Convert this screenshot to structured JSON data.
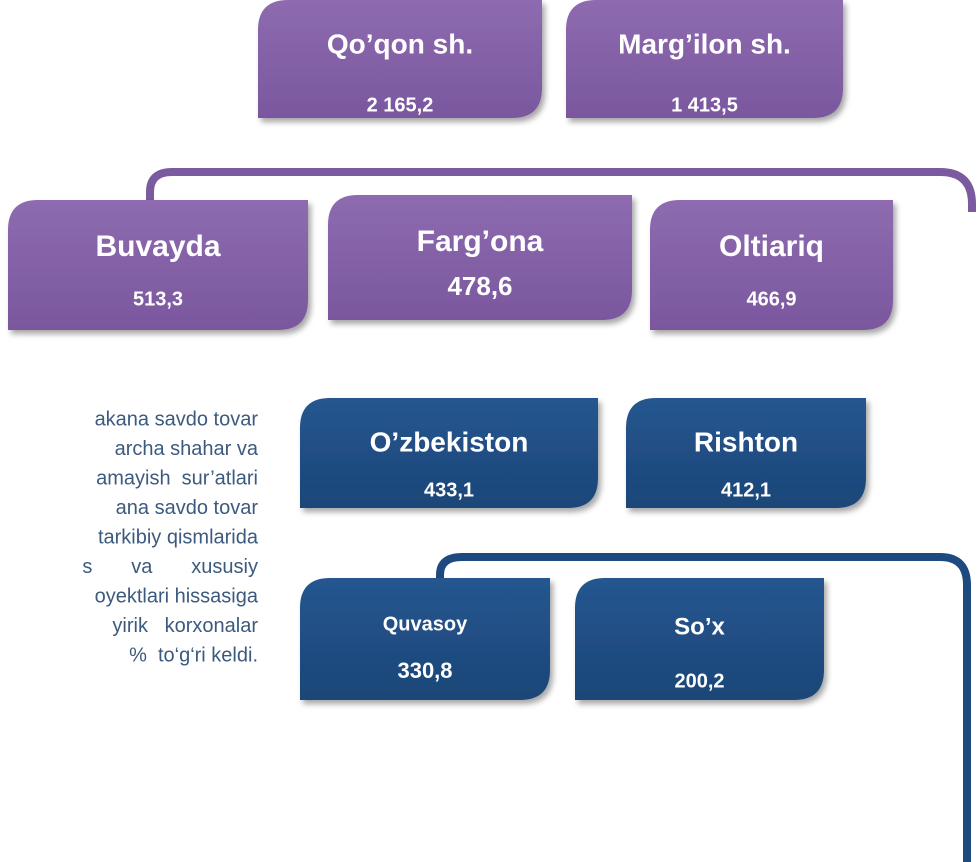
{
  "purple_nodes": [
    {
      "label": "Qo’qon sh.",
      "value": "2 165,2"
    },
    {
      "label": "Marg’ilon sh.",
      "value": "1  413,5"
    },
    {
      "label": "Buvayda",
      "value": "513,3"
    },
    {
      "label": "Farg’ona",
      "value": "478,6"
    },
    {
      "label": "Oltiariq",
      "value": "466,9"
    }
  ],
  "blue_nodes": [
    {
      "label": "O’zbekiston",
      "value": "433,1"
    },
    {
      "label": "Rishton",
      "value": "412,1"
    },
    {
      "label": "Quvasoy",
      "value": "330,8"
    },
    {
      "label": "So’x",
      "value": "200,2"
    }
  ],
  "text_lines": [
    "akana savdo tovar",
    "archa shahar va",
    "amayish  sur’atlari",
    "ana savdo tovar",
    "tarkibiy qismlarida",
    "s       va       xususiy",
    "oyektlari hissasiga",
    "yirik   korxonalar",
    "%  to‘g‘ri keldi."
  ]
}
